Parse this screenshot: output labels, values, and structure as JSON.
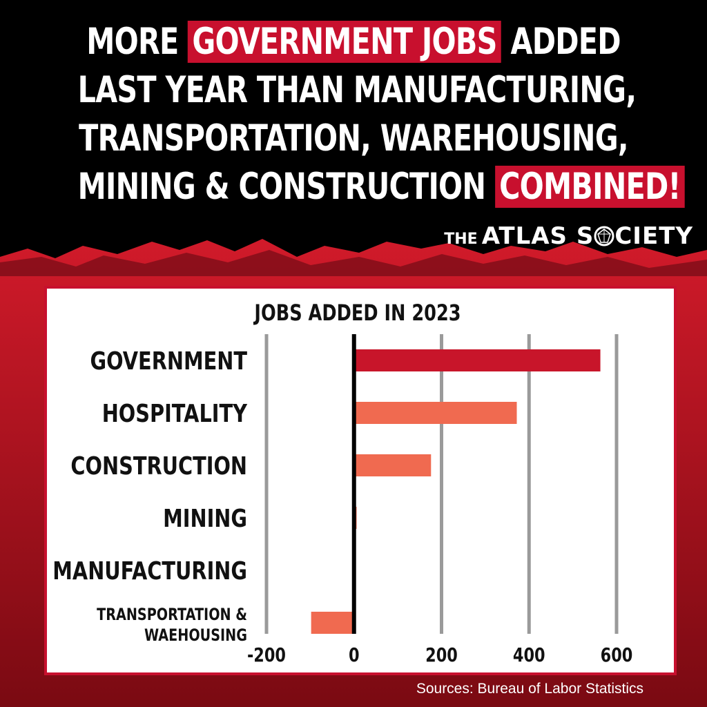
{
  "headline": {
    "line1_a": "MORE ",
    "line1_hl": "GOVERNMENT JOBS",
    "line1_b": " ADDED",
    "line2": "LAST YEAR THAN MANUFACTURING,",
    "line3": "TRANSPORTATION, WAREHOUSING,",
    "line4_a": "MINING & CONSTRUCTION ",
    "line4_hl": "COMBINED!"
  },
  "brand": {
    "small": "THE",
    "name_a": "ATLAS S",
    "name_b": "CIETY"
  },
  "source": "Sources: Bureau of Labor Statistics",
  "colors": {
    "accent": "#c8102e",
    "bar_primary": "#c8152a",
    "bar_secondary": "#f06a50",
    "grid": "#9a9a9a"
  },
  "chart_data": {
    "type": "bar",
    "orientation": "horizontal",
    "title": "JOBS ADDED IN 2023",
    "categories": [
      "GOVERNMENT",
      "HOSPITALITY",
      "CONSTRUCTION",
      "MINING",
      "MANUFACTURING",
      "TRANSPORTATION & WAEHOUSING"
    ],
    "values": [
      563,
      372,
      176,
      6,
      0,
      -98
    ],
    "xlim": [
      -200,
      600
    ],
    "ticks": [
      "-200",
      "0",
      "200",
      "400",
      "600"
    ],
    "grid": true
  }
}
